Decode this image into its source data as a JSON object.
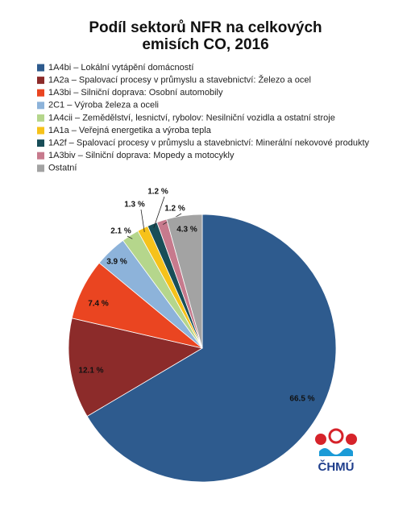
{
  "chart_data": {
    "type": "pie",
    "title": "Podíl sektorů NFR na celkových emisích CO, 2016",
    "categories": [
      "1A4bi – Lokální vytápění domácností",
      "1A2a – Spalovací procesy v průmyslu a stavebnictví: Železo a ocel",
      "1A3bi – Silniční doprava: Osobní automobily",
      "2C1 – Výroba železa a oceli",
      "1A4cii – Zemědělství, lesnictví, rybolov: Nesilniční vozidla a ostatní stroje",
      "1A1a – Veřejná energetika a výroba tepla",
      "1A2f – Spalovací procesy v průmyslu a stavebnictví: Minerální nekovové produkty",
      "1A3biv – Silniční doprava: Mopedy a motocykly",
      "Ostatní"
    ],
    "values": [
      66.5,
      12.1,
      7.4,
      3.9,
      2.1,
      1.3,
      1.2,
      1.2,
      4.3
    ],
    "value_labels": [
      "66.5 %",
      "12.1 %",
      "7.4 %",
      "3.9 %",
      "2.1 %",
      "1.3 %",
      "1.2 %",
      "1.2 %",
      "4.3 %"
    ],
    "colors": [
      "#2e5b8e",
      "#8c2b2a",
      "#ea4521",
      "#8db3da",
      "#b5d68c",
      "#f6c21a",
      "#184e58",
      "#c77a8d",
      "#a3a3a3"
    ],
    "legend": "top-left",
    "logo_text": "ČHMÚ"
  }
}
